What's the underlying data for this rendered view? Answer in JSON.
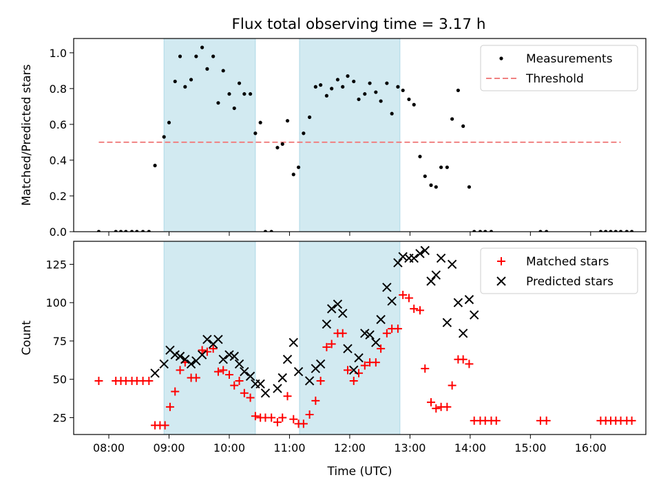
{
  "title": "Flux total observing time = 3.17 h",
  "chart_data": [
    {
      "type": "scatter",
      "ylabel": "Matched/Predicted stars",
      "ylim": [
        0,
        1.08
      ],
      "yticks": [
        "0.0",
        "0.2",
        "0.4",
        "0.6",
        "0.8",
        "1.0"
      ],
      "ytick_values": [
        0,
        0.2,
        0.4,
        0.6,
        0.8,
        1.0
      ],
      "xlim": [
        "07:25",
        "16:55"
      ],
      "shaded_intervals": [
        [
          "08:55",
          "10:26"
        ],
        [
          "11:10",
          "12:50"
        ]
      ],
      "legend": {
        "placement": "top-right",
        "entries": [
          "Measurements",
          "Threshold"
        ]
      },
      "colors": {
        "measurements": "#000000",
        "threshold": "#f08080",
        "shading": "#add8e6"
      },
      "threshold": {
        "name": "Threshold",
        "value": 0.5,
        "x": [
          "07:50",
          "16:30"
        ]
      },
      "series": [
        {
          "name": "Measurements",
          "points": [
            [
              "07:50",
              0
            ],
            [
              "08:07",
              0
            ],
            [
              "08:12",
              0
            ],
            [
              "08:17",
              0
            ],
            [
              "08:23",
              0
            ],
            [
              "08:28",
              0
            ],
            [
              "08:34",
              0
            ],
            [
              "08:40",
              0
            ],
            [
              "08:46",
              0.37
            ],
            [
              "08:55",
              0.53
            ],
            [
              "09:00",
              0.61
            ],
            [
              "09:06",
              0.84
            ],
            [
              "09:11",
              0.98
            ],
            [
              "09:16",
              0.81
            ],
            [
              "09:22",
              0.85
            ],
            [
              "09:27",
              0.98
            ],
            [
              "09:33",
              1.03
            ],
            [
              "09:38",
              0.91
            ],
            [
              "09:44",
              0.98
            ],
            [
              "09:49",
              0.72
            ],
            [
              "09:54",
              0.9
            ],
            [
              "10:00",
              0.77
            ],
            [
              "10:05",
              0.69
            ],
            [
              "10:10",
              0.83
            ],
            [
              "10:15",
              0.77
            ],
            [
              "10:21",
              0.77
            ],
            [
              "10:26",
              0.55
            ],
            [
              "10:31",
              0.61
            ],
            [
              "10:36",
              0
            ],
            [
              "10:42",
              0
            ],
            [
              "10:48",
              0.47
            ],
            [
              "10:53",
              0.49
            ],
            [
              "10:58",
              0.62
            ],
            [
              "11:04",
              0.32
            ],
            [
              "11:09",
              0.36
            ],
            [
              "11:14",
              0.55
            ],
            [
              "11:20",
              0.64
            ],
            [
              "11:26",
              0.81
            ],
            [
              "11:31",
              0.82
            ],
            [
              "11:37",
              0.76
            ],
            [
              "11:42",
              0.8
            ],
            [
              "11:48",
              0.85
            ],
            [
              "11:53",
              0.81
            ],
            [
              "11:58",
              0.87
            ],
            [
              "12:04",
              0.84
            ],
            [
              "12:09",
              0.74
            ],
            [
              "12:15",
              0.77
            ],
            [
              "12:20",
              0.83
            ],
            [
              "12:26",
              0.78
            ],
            [
              "12:31",
              0.73
            ],
            [
              "12:37",
              0.83
            ],
            [
              "12:42",
              0.66
            ],
            [
              "12:48",
              0.81
            ],
            [
              "12:53",
              0.79
            ],
            [
              "12:59",
              0.74
            ],
            [
              "13:04",
              0.71
            ],
            [
              "13:10",
              0.42
            ],
            [
              "13:15",
              0.31
            ],
            [
              "13:21",
              0.26
            ],
            [
              "13:26",
              0.25
            ],
            [
              "13:31",
              0.36
            ],
            [
              "13:37",
              0.36
            ],
            [
              "13:42",
              0.63
            ],
            [
              "13:48",
              0.79
            ],
            [
              "13:53",
              0.59
            ],
            [
              "13:59",
              0.25
            ],
            [
              "14:04",
              0
            ],
            [
              "14:10",
              0
            ],
            [
              "14:15",
              0
            ],
            [
              "14:21",
              0
            ],
            [
              "15:10",
              0
            ],
            [
              "15:16",
              0
            ],
            [
              "16:10",
              0
            ],
            [
              "16:15",
              0
            ],
            [
              "16:20",
              0
            ],
            [
              "16:25",
              0
            ],
            [
              "16:30",
              0
            ],
            [
              "16:36",
              0
            ],
            [
              "16:41",
              0
            ]
          ]
        }
      ]
    },
    {
      "type": "scatter",
      "xlabel": "Time (UTC)",
      "ylabel": "Count",
      "ylim": [
        14,
        140
      ],
      "yticks": [
        "25",
        "50",
        "75",
        "100",
        "125"
      ],
      "ytick_values": [
        25,
        50,
        75,
        100,
        125
      ],
      "xlim": [
        "07:25",
        "16:55"
      ],
      "xticks": [
        "08:00",
        "09:00",
        "10:00",
        "11:00",
        "12:00",
        "13:00",
        "14:00",
        "15:00",
        "16:00"
      ],
      "shaded_intervals": [
        [
          "08:55",
          "10:26"
        ],
        [
          "11:10",
          "12:50"
        ]
      ],
      "legend": {
        "placement": "top-right",
        "entries": [
          "Matched stars",
          "Predicted stars"
        ]
      },
      "colors": {
        "matched": "#ff0000",
        "predicted": "#000000",
        "shading": "#add8e6"
      },
      "series": [
        {
          "name": "Matched stars",
          "marker": "+",
          "points": [
            [
              "07:50",
              49
            ],
            [
              "08:07",
              49
            ],
            [
              "08:12",
              49
            ],
            [
              "08:17",
              49
            ],
            [
              "08:23",
              49
            ],
            [
              "08:28",
              49
            ],
            [
              "08:34",
              49
            ],
            [
              "08:40",
              49
            ],
            [
              "08:46",
              20
            ],
            [
              "08:51",
              20
            ],
            [
              "08:56",
              20
            ],
            [
              "09:01",
              32
            ],
            [
              "09:06",
              42
            ],
            [
              "09:11",
              56
            ],
            [
              "09:16",
              61
            ],
            [
              "09:22",
              51
            ],
            [
              "09:27",
              51
            ],
            [
              "09:33",
              69
            ],
            [
              "09:38",
              68
            ],
            [
              "09:44",
              70
            ],
            [
              "09:49",
              55
            ],
            [
              "09:54",
              56
            ],
            [
              "10:00",
              53
            ],
            [
              "10:05",
              46
            ],
            [
              "10:10",
              49
            ],
            [
              "10:15",
              41
            ],
            [
              "10:21",
              38
            ],
            [
              "10:26",
              26
            ],
            [
              "10:31",
              25
            ],
            [
              "10:36",
              25
            ],
            [
              "10:42",
              25
            ],
            [
              "10:48",
              22
            ],
            [
              "10:53",
              25
            ],
            [
              "10:58",
              39
            ],
            [
              "11:04",
              24
            ],
            [
              "11:09",
              21
            ],
            [
              "11:14",
              21
            ],
            [
              "11:20",
              27
            ],
            [
              "11:26",
              36
            ],
            [
              "11:31",
              49
            ],
            [
              "11:37",
              71
            ],
            [
              "11:42",
              73
            ],
            [
              "11:48",
              80
            ],
            [
              "11:53",
              80
            ],
            [
              "11:58",
              56
            ],
            [
              "12:04",
              49
            ],
            [
              "12:09",
              54
            ],
            [
              "12:15",
              59
            ],
            [
              "12:20",
              61
            ],
            [
              "12:26",
              61
            ],
            [
              "12:31",
              70
            ],
            [
              "12:37",
              80
            ],
            [
              "12:42",
              83
            ],
            [
              "12:48",
              83
            ],
            [
              "12:53",
              105
            ],
            [
              "12:59",
              103
            ],
            [
              "13:04",
              96
            ],
            [
              "13:10",
              95
            ],
            [
              "13:15",
              57
            ],
            [
              "13:21",
              35
            ],
            [
              "13:26",
              31
            ],
            [
              "13:31",
              32
            ],
            [
              "13:37",
              32
            ],
            [
              "13:42",
              46
            ],
            [
              "13:48",
              63
            ],
            [
              "13:53",
              63
            ],
            [
              "13:59",
              60
            ],
            [
              "14:04",
              23
            ],
            [
              "14:10",
              23
            ],
            [
              "14:15",
              23
            ],
            [
              "14:21",
              23
            ],
            [
              "14:26",
              23
            ],
            [
              "15:10",
              23
            ],
            [
              "15:16",
              23
            ],
            [
              "16:10",
              23
            ],
            [
              "16:15",
              23
            ],
            [
              "16:20",
              23
            ],
            [
              "16:25",
              23
            ],
            [
              "16:30",
              23
            ],
            [
              "16:36",
              23
            ],
            [
              "16:41",
              23
            ]
          ]
        },
        {
          "name": "Predicted stars",
          "marker": "x",
          "points": [
            [
              "08:46",
              54
            ],
            [
              "08:55",
              60
            ],
            [
              "09:01",
              69
            ],
            [
              "09:06",
              66
            ],
            [
              "09:11",
              65
            ],
            [
              "09:16",
              63
            ],
            [
              "09:22",
              60
            ],
            [
              "09:27",
              62
            ],
            [
              "09:33",
              66
            ],
            [
              "09:38",
              76
            ],
            [
              "09:44",
              73
            ],
            [
              "09:49",
              76
            ],
            [
              "09:54",
              63
            ],
            [
              "10:00",
              66
            ],
            [
              "10:05",
              65
            ],
            [
              "10:10",
              60
            ],
            [
              "10:15",
              55
            ],
            [
              "10:21",
              52
            ],
            [
              "10:26",
              47
            ],
            [
              "10:31",
              47
            ],
            [
              "10:36",
              41
            ],
            [
              "10:48",
              44
            ],
            [
              "10:53",
              51
            ],
            [
              "10:58",
              63
            ],
            [
              "11:04",
              74
            ],
            [
              "11:09",
              55
            ],
            [
              "11:20",
              49
            ],
            [
              "11:26",
              57
            ],
            [
              "11:31",
              60
            ],
            [
              "11:37",
              86
            ],
            [
              "11:42",
              96
            ],
            [
              "11:48",
              99
            ],
            [
              "11:53",
              93
            ],
            [
              "11:58",
              70
            ],
            [
              "12:04",
              56
            ],
            [
              "12:09",
              64
            ],
            [
              "12:15",
              80
            ],
            [
              "12:20",
              79
            ],
            [
              "12:26",
              74
            ],
            [
              "12:31",
              89
            ],
            [
              "12:37",
              110
            ],
            [
              "12:42",
              101
            ],
            [
              "12:48",
              126
            ],
            [
              "12:53",
              130
            ],
            [
              "12:59",
              129
            ],
            [
              "13:04",
              129
            ],
            [
              "13:10",
              132
            ],
            [
              "13:15",
              134
            ],
            [
              "13:21",
              114
            ],
            [
              "13:26",
              118
            ],
            [
              "13:31",
              129
            ],
            [
              "13:37",
              87
            ],
            [
              "13:42",
              125
            ],
            [
              "13:48",
              100
            ],
            [
              "13:53",
              80
            ],
            [
              "13:59",
              102
            ],
            [
              "14:04",
              92
            ]
          ]
        }
      ]
    }
  ]
}
